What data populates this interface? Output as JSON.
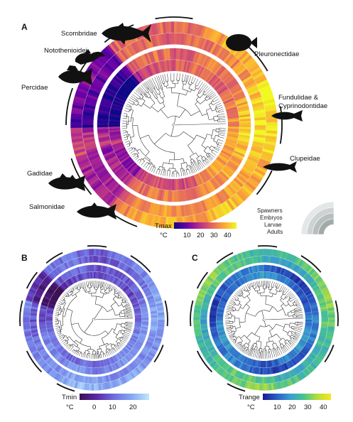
{
  "panels": [
    {
      "id": "A",
      "letter": "A",
      "metric": "Tmax",
      "unit": "°C",
      "ticks": [
        "10",
        "20",
        "30",
        "40"
      ],
      "colors": [
        "#0d0887",
        "#6a00a8",
        "#b12a90",
        "#e16462",
        "#fca636",
        "#f0f921"
      ]
    },
    {
      "id": "B",
      "letter": "B",
      "metric": "Tmin",
      "unit": "°C",
      "ticks": [
        "0",
        "10",
        "20"
      ],
      "colors": [
        "#3b0f53",
        "#5b2aa6",
        "#6f6fe0",
        "#86a8f2",
        "#bfe7fb"
      ]
    },
    {
      "id": "C",
      "letter": "C",
      "metric": "Trange",
      "unit": "°C",
      "ticks": [
        "10",
        "20",
        "30",
        "40"
      ],
      "colors": [
        "#1a1a8f",
        "#2b5cc6",
        "#3a9bd0",
        "#49c48e",
        "#b6dc3a",
        "#f6e81e"
      ]
    }
  ],
  "families": [
    {
      "key": "scombridae",
      "label": "Scombridae",
      "icon": "tuna-icon"
    },
    {
      "key": "pleuronectidae",
      "label": "Pleuronectidae",
      "icon": "flatfish-icon"
    },
    {
      "key": "notothenioidei",
      "label": "Notothenioidei",
      "icon": "icefish-icon"
    },
    {
      "key": "percidae",
      "label": "Percidae",
      "icon": "perch-icon"
    },
    {
      "key": "fundulidae",
      "label": "Fundulidae &",
      "icon": "killifish-icon"
    },
    {
      "key": "cyprinodontidae",
      "label": "Cyprinodontidae"
    },
    {
      "key": "clupeidae",
      "label": "Clupeidae",
      "icon": "herring-icon"
    },
    {
      "key": "gadidae",
      "label": "Gadidae",
      "icon": "cod-icon"
    },
    {
      "key": "salmonidae",
      "label": "Salmonidae",
      "icon": "salmon-icon"
    }
  ],
  "stages_legend": [
    "Spawners",
    "Embryos",
    "Larvae",
    "Adults"
  ]
}
